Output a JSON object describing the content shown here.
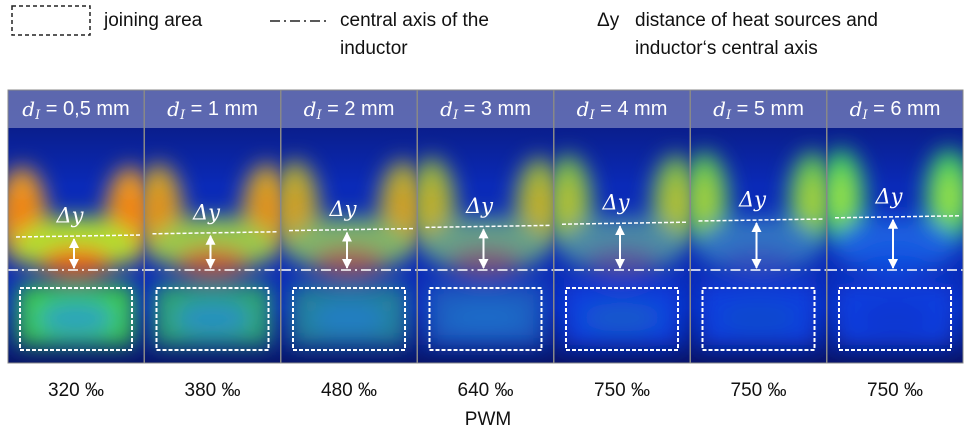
{
  "legend": [
    {
      "symbol": "",
      "lines": [
        "joining area"
      ]
    },
    {
      "symbol": "",
      "lines": [
        "central axis of the",
        "inductor"
      ]
    },
    {
      "symbol": "Δy",
      "lines": [
        "distance of heat sources and",
        "inductor‘s central axis"
      ]
    }
  ],
  "panels": [
    {
      "symbol": "d",
      "subscript": "I",
      "text": " = 0,5 mm",
      "delta": "Δy",
      "pwm": "320 ‰"
    },
    {
      "symbol": "d",
      "subscript": "I",
      "text": " = 1 mm",
      "delta": "Δy",
      "pwm": "380 ‰"
    },
    {
      "symbol": "d",
      "subscript": "I",
      "text": " = 2 mm",
      "delta": "Δy",
      "pwm": "480 ‰"
    },
    {
      "symbol": "d",
      "subscript": "I",
      "text": " = 3 mm",
      "delta": "Δy",
      "pwm": "640 ‰"
    },
    {
      "symbol": "d",
      "subscript": "I",
      "text": " = 4 mm",
      "delta": "Δy",
      "pwm": "750 ‰"
    },
    {
      "symbol": "d",
      "subscript": "I",
      "text": " = 5 mm",
      "delta": "Δy",
      "pwm": "750 ‰"
    },
    {
      "symbol": "d",
      "subscript": "I",
      "text": " = 6 mm",
      "delta": "Δy",
      "pwm": "750 ‰"
    }
  ],
  "axis_label": "PWM"
}
